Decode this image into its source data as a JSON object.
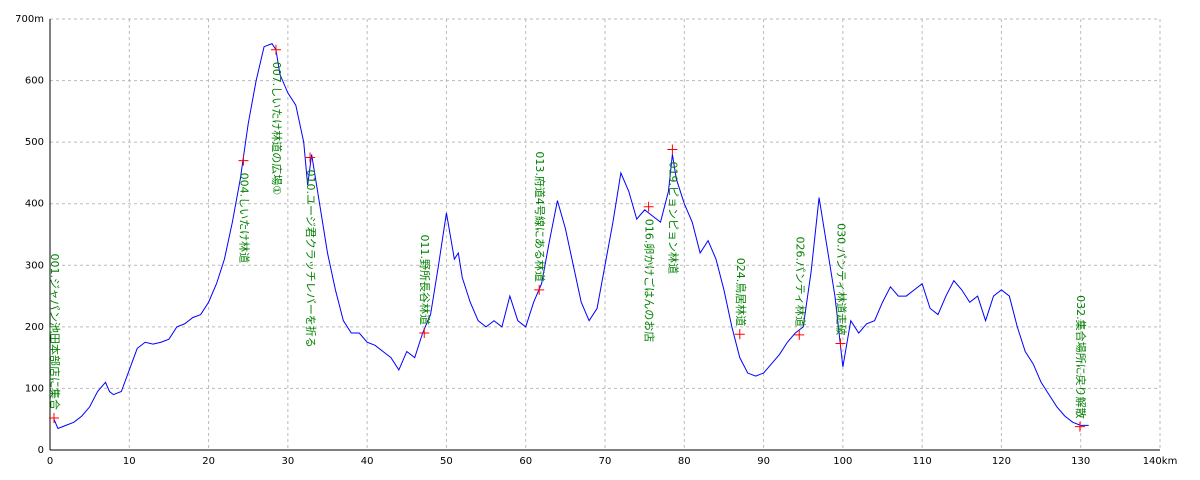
{
  "chart_data": {
    "type": "line",
    "x": [
      0.5,
      1,
      2,
      3,
      4,
      5,
      6,
      7,
      7.5,
      8,
      9,
      10,
      11,
      12,
      13,
      14,
      15,
      16,
      17,
      18,
      19,
      20,
      21,
      22,
      23,
      24,
      25,
      26,
      27,
      28,
      28.5,
      29,
      30,
      31,
      32,
      32.5,
      33,
      34,
      35,
      36,
      37,
      38,
      39,
      40,
      41,
      42,
      43,
      44,
      45,
      46,
      47,
      48,
      49,
      50,
      51,
      51.5,
      52,
      53,
      54,
      55,
      56,
      57,
      58,
      59,
      60,
      61,
      62,
      63,
      64,
      65,
      66,
      67,
      68,
      69,
      70,
      71,
      72,
      73,
      74,
      75,
      76,
      77,
      78,
      78.5,
      79,
      80,
      81,
      82,
      83,
      84,
      85,
      86,
      87,
      88,
      89,
      90,
      91,
      92,
      93,
      94,
      95,
      96,
      97,
      98,
      99,
      100,
      101,
      102,
      103,
      104,
      105,
      106,
      107,
      108,
      109,
      110,
      111,
      112,
      113,
      114,
      115,
      116,
      117,
      118,
      119,
      120,
      121,
      122,
      123,
      124,
      125,
      126,
      127,
      128,
      129,
      130,
      131
    ],
    "series": [
      {
        "color": "#0000ff",
        "values": [
          50,
          35,
          40,
          45,
          55,
          70,
          95,
          110,
          95,
          90,
          95,
          130,
          165,
          175,
          172,
          175,
          180,
          200,
          205,
          215,
          220,
          240,
          270,
          310,
          370,
          440,
          530,
          600,
          655,
          660,
          650,
          610,
          580,
          560,
          500,
          430,
          480,
          400,
          320,
          260,
          210,
          190,
          190,
          175,
          170,
          160,
          150,
          130,
          160,
          150,
          190,
          220,
          300,
          385,
          310,
          320,
          280,
          240,
          210,
          200,
          210,
          200,
          250,
          210,
          200,
          240,
          270,
          340,
          405,
          360,
          300,
          240,
          210,
          230,
          300,
          370,
          450,
          420,
          375,
          390,
          380,
          370,
          420,
          480,
          440,
          400,
          370,
          320,
          340,
          310,
          260,
          200,
          150,
          125,
          120,
          125,
          140,
          155,
          175,
          190,
          200,
          290,
          410,
          330,
          250,
          135,
          210,
          190,
          205,
          210,
          240,
          265,
          250,
          250,
          260,
          270,
          230,
          220,
          250,
          275,
          260,
          240,
          250,
          210,
          250,
          260,
          250,
          200,
          160,
          140,
          110,
          90,
          70,
          55,
          45,
          40,
          40
        ]
      }
    ],
    "waypoints": [
      {
        "x": 0.5,
        "value": 52,
        "label": "001.ジャパン池田本部店に集合"
      },
      {
        "x": 24.4,
        "value": 470,
        "label": "004.しいたけ林道"
      },
      {
        "x": 28.5,
        "value": 650,
        "label": "007.しいたけ林道の広場①"
      },
      {
        "x": 32.8,
        "value": 475,
        "label": "010.ユージ君クラッチレバーを折る"
      },
      {
        "x": 47.2,
        "value": 190,
        "label": "011.野所長谷林道"
      },
      {
        "x": 61.7,
        "value": 260,
        "label": "013.府道4号線にある林道"
      },
      {
        "x": 75.5,
        "value": 395,
        "label": "016.卵かけごはんのお店"
      },
      {
        "x": 78.5,
        "value": 488,
        "label": "019.ピョンピョン林道"
      },
      {
        "x": 87,
        "value": 188,
        "label": "024.鳥居林道"
      },
      {
        "x": 94.5,
        "value": 187,
        "label": "026.パンティ林道"
      },
      {
        "x": 99.7,
        "value": 173,
        "label": "030.パンティ林道走破"
      },
      {
        "x": 129.9,
        "value": 38,
        "label": "032.集合場所に戻り解散"
      }
    ],
    "marker_color": "#ff0000",
    "label_color": "#008000",
    "xlim": [
      0,
      140
    ],
    "xticks": [
      0,
      10,
      20,
      30,
      40,
      50,
      60,
      70,
      80,
      90,
      100,
      110,
      120,
      130,
      {
        "value": 140,
        "label": "140km"
      }
    ],
    "ylim": [
      0,
      700
    ],
    "yticks": [
      0,
      100,
      200,
      300,
      400,
      500,
      600,
      {
        "value": 700,
        "label": "700m"
      }
    ],
    "grid": true
  }
}
